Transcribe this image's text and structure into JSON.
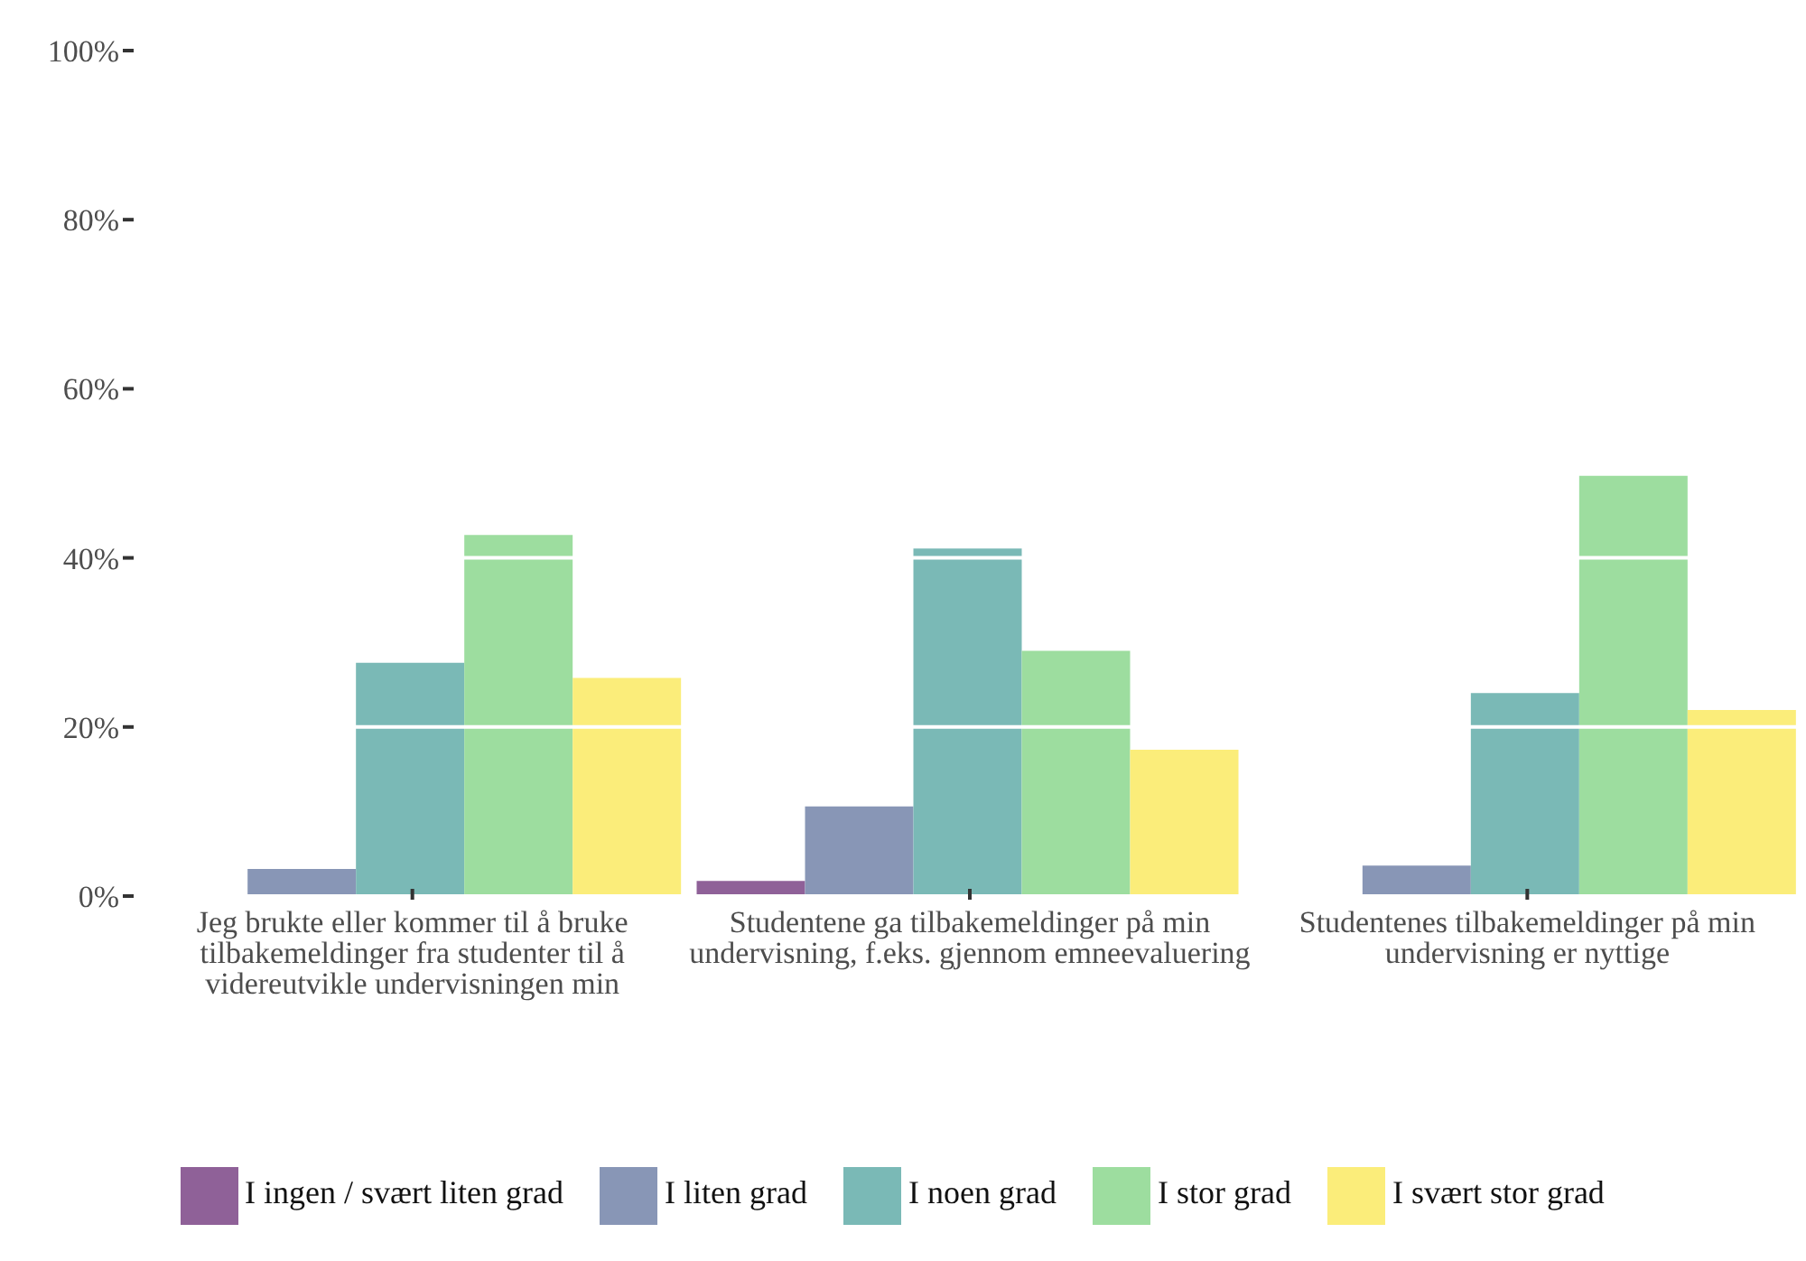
{
  "chart_data": {
    "type": "bar",
    "categories": [
      "Jeg brukte eller kommer til å bruke tilbakemeldinger fra studenter til å videreutvikle undervisningen min",
      "Studentene ga tilbakemeldinger på min undervisning, f.eks. gjennom emneevaluering",
      "Studentenes tilbakemeldinger på min undervisning er nyttige"
    ],
    "series": [
      {
        "name": "I ingen / svært liten grad",
        "color": "#8f6198",
        "values": [
          null,
          1.8,
          null
        ]
      },
      {
        "name": "I liten grad",
        "color": "#8896b6",
        "values": [
          3.2,
          10.6,
          3.6
        ]
      },
      {
        "name": "I noen grad",
        "color": "#7ab9b6",
        "values": [
          27.6,
          41.1,
          24.0
        ]
      },
      {
        "name": "I stor grad",
        "color": "#9ddd9f",
        "values": [
          42.7,
          29.0,
          49.7
        ]
      },
      {
        "name": "I svært stor grad",
        "color": "#fbed7a",
        "values": [
          25.8,
          17.3,
          22.0
        ]
      }
    ],
    "ylim": [
      0,
      100
    ],
    "yticks": [
      {
        "value": 0,
        "label": "0%"
      },
      {
        "value": 20,
        "label": "20%"
      },
      {
        "value": 40,
        "label": "40%"
      },
      {
        "value": 60,
        "label": "60%"
      },
      {
        "value": 80,
        "label": "80%"
      },
      {
        "value": 100,
        "label": "100%"
      }
    ],
    "grid": "y",
    "legend": "bottom"
  }
}
